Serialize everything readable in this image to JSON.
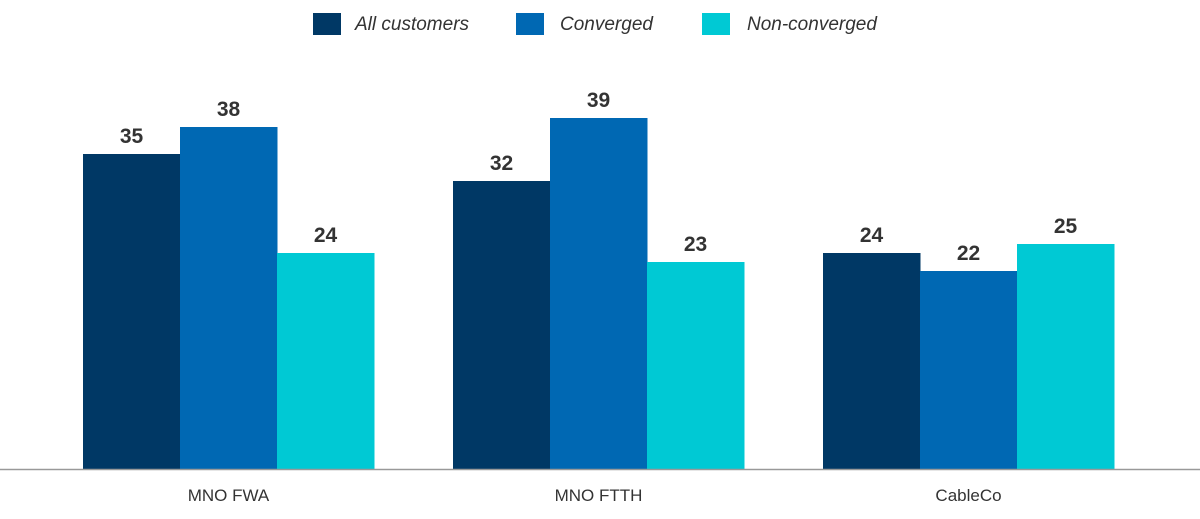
{
  "chart_data": {
    "type": "bar",
    "categories": [
      "MNO FWA",
      "MNO FTTH",
      "CableCo"
    ],
    "series": [
      {
        "name": "All customers",
        "color": "#003865",
        "values": [
          35,
          32,
          24
        ]
      },
      {
        "name": "Converged",
        "color": "#0068B3",
        "values": [
          38,
          39,
          22
        ]
      },
      {
        "name": "Non-converged",
        "color": "#00C9D4",
        "values": [
          24,
          23,
          25
        ]
      }
    ],
    "title": "",
    "xlabel": "",
    "ylabel": "",
    "ylim": [
      0,
      45
    ],
    "grid": false,
    "legend_position": "top-center",
    "axis_color": "#999999"
  }
}
